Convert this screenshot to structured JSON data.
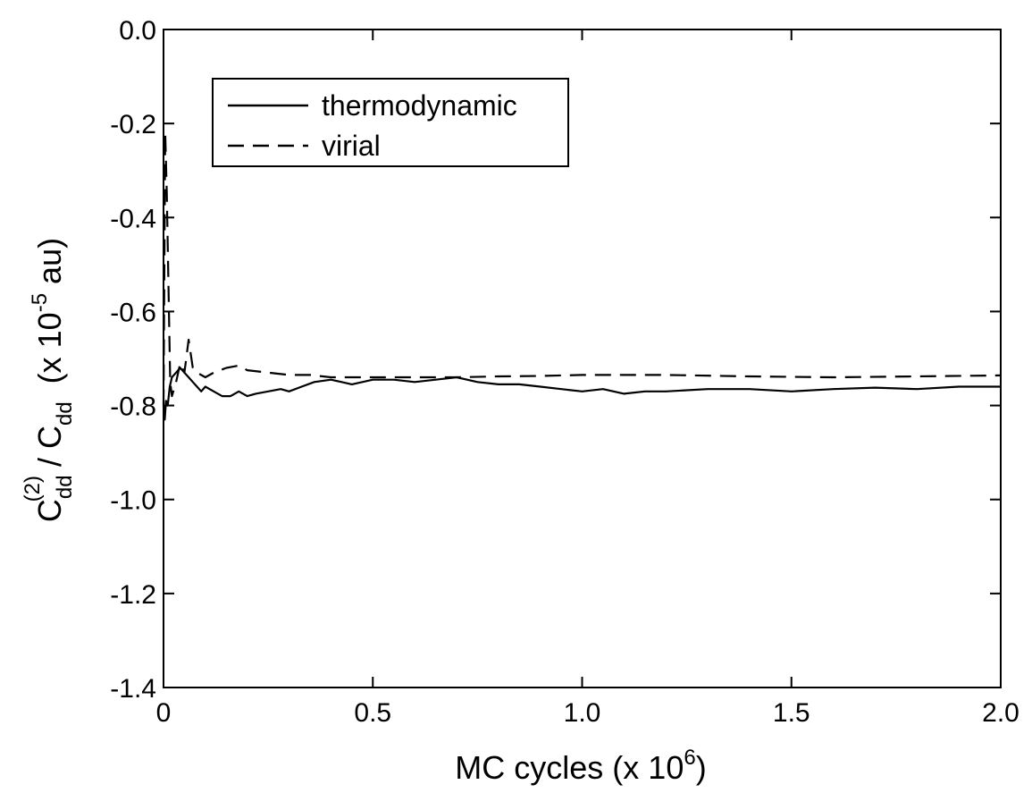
{
  "chart_data": {
    "type": "line",
    "xlabel": {
      "prefix": "MC cycles (x 10",
      "exponent": "6",
      "suffix": ")"
    },
    "ylabel": {
      "base1": "C",
      "sub1": "dd",
      "sup1": "(2)",
      "slash": " / ",
      "base2": "C",
      "sub2": "dd",
      "unit_prefix": "(x 10",
      "unit_exponent": "-5",
      "unit_suffix": " au)"
    },
    "xlim": [
      0,
      2.0
    ],
    "ylim": [
      -1.4,
      0.0
    ],
    "x_ticks": [
      {
        "value": 0,
        "label": "0"
      },
      {
        "value": 0.5,
        "label": "0.5"
      },
      {
        "value": 1.0,
        "label": "1.0"
      },
      {
        "value": 1.5,
        "label": "1.5"
      },
      {
        "value": 2.0,
        "label": "2.0"
      }
    ],
    "y_ticks": [
      {
        "value": 0.0,
        "label": "0.0"
      },
      {
        "value": -0.2,
        "label": "-0.2"
      },
      {
        "value": -0.4,
        "label": "-0.4"
      },
      {
        "value": -0.6,
        "label": "-0.6"
      },
      {
        "value": -0.8,
        "label": "-0.8"
      },
      {
        "value": -1.0,
        "label": "-1.0"
      },
      {
        "value": -1.2,
        "label": "-1.2"
      },
      {
        "value": -1.4,
        "label": "-1.4"
      }
    ],
    "grid": false,
    "legend_position": "top-left",
    "series": [
      {
        "name": "thermodynamic",
        "style": "solid",
        "color": "#000000",
        "x": [
          0,
          0.003,
          0.006,
          0.01,
          0.015,
          0.02,
          0.03,
          0.04,
          0.05,
          0.06,
          0.07,
          0.08,
          0.09,
          0.1,
          0.12,
          0.14,
          0.16,
          0.18,
          0.2,
          0.22,
          0.25,
          0.28,
          0.3,
          0.33,
          0.36,
          0.4,
          0.45,
          0.5,
          0.55,
          0.6,
          0.65,
          0.7,
          0.75,
          0.8,
          0.85,
          0.9,
          0.95,
          1.0,
          1.05,
          1.1,
          1.15,
          1.2,
          1.3,
          1.4,
          1.5,
          1.6,
          1.7,
          1.8,
          1.9,
          2.0
        ],
        "y": [
          -0.8,
          -0.83,
          -0.79,
          -0.8,
          -0.76,
          -0.74,
          -0.73,
          -0.72,
          -0.73,
          -0.74,
          -0.75,
          -0.76,
          -0.77,
          -0.76,
          -0.77,
          -0.78,
          -0.78,
          -0.77,
          -0.78,
          -0.775,
          -0.77,
          -0.765,
          -0.77,
          -0.76,
          -0.75,
          -0.745,
          -0.755,
          -0.745,
          -0.745,
          -0.75,
          -0.745,
          -0.74,
          -0.75,
          -0.755,
          -0.755,
          -0.76,
          -0.765,
          -0.77,
          -0.765,
          -0.775,
          -0.77,
          -0.77,
          -0.765,
          -0.765,
          -0.77,
          -0.765,
          -0.762,
          -0.765,
          -0.76,
          -0.76
        ]
      },
      {
        "name": "virial",
        "style": "dashed",
        "color": "#000000",
        "x": [
          0,
          0.004,
          0.008,
          0.012,
          0.016,
          0.02,
          0.03,
          0.04,
          0.05,
          0.06,
          0.07,
          0.08,
          0.1,
          0.12,
          0.15,
          0.18,
          0.2,
          0.25,
          0.3,
          0.35,
          0.4,
          0.5,
          0.6,
          0.7,
          0.8,
          0.9,
          1.0,
          1.2,
          1.4,
          1.6,
          1.8,
          2.0
        ],
        "y": [
          -0.8,
          -0.22,
          -0.35,
          -0.55,
          -0.75,
          -0.78,
          -0.75,
          -0.71,
          -0.73,
          -0.66,
          -0.72,
          -0.73,
          -0.74,
          -0.73,
          -0.72,
          -0.715,
          -0.725,
          -0.73,
          -0.735,
          -0.735,
          -0.74,
          -0.74,
          -0.74,
          -0.74,
          -0.738,
          -0.737,
          -0.735,
          -0.735,
          -0.738,
          -0.74,
          -0.738,
          -0.736
        ]
      }
    ]
  }
}
